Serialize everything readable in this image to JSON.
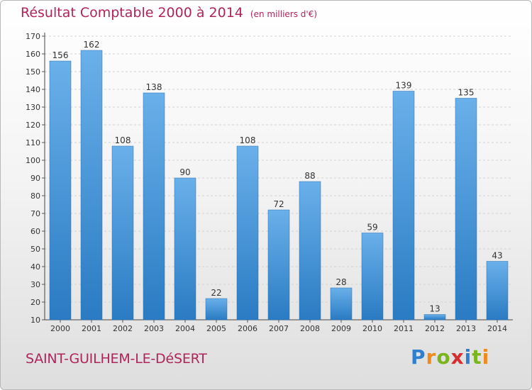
{
  "title": "Résultat Comptable 2000 à 2014",
  "subtitle": "(en milliers d'€)",
  "footer_city": "SAINT-GUILHEM-LE-DéSERT",
  "brand": {
    "letters": [
      "P",
      "r",
      "o",
      "x",
      "i",
      "t",
      "i"
    ],
    "colors": [
      "#2f7fd0",
      "#f08a1c",
      "#7ab51d",
      "#d62e2e",
      "#2f7fd0",
      "#7ab51d",
      "#f08a1c"
    ]
  },
  "colors": {
    "bar_light": "#6ab0ea",
    "bar_dark": "#2a7bc3",
    "title": "#b0245a"
  },
  "chart_data": {
    "type": "bar",
    "title": "Résultat Comptable 2000 à 2014",
    "categories": [
      "2000",
      "2001",
      "2002",
      "2003",
      "2004",
      "2005",
      "2006",
      "2007",
      "2008",
      "2009",
      "2010",
      "2011",
      "2012",
      "2013",
      "2014"
    ],
    "values": [
      156,
      162,
      108,
      138,
      90,
      22,
      108,
      72,
      88,
      28,
      59,
      139,
      13,
      135,
      43
    ],
    "ylim": [
      10,
      170
    ],
    "yticks": [
      10,
      20,
      30,
      40,
      50,
      60,
      70,
      80,
      90,
      100,
      110,
      120,
      130,
      140,
      150,
      160,
      170
    ],
    "grid": true
  }
}
